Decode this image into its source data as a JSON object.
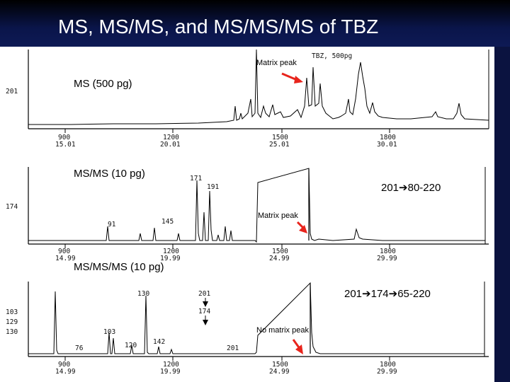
{
  "title": "MS, MS/MS, and MS/MS/MS of TBZ",
  "panel1": {
    "label": "MS (500 pg)",
    "header": "TBZ, 500pg",
    "ylabel": "201",
    "matrix": "Matrix peak",
    "ticks_scan": [
      "900",
      "1200",
      "1500",
      "1800"
    ],
    "ticks_time": [
      "15.01",
      "20.01",
      "25.01",
      "30.01"
    ]
  },
  "panel2": {
    "label": "MS/MS (10 pg)",
    "transition": "201➔80-220",
    "ylabel": "174",
    "peaks": [
      "171",
      "191",
      "91",
      "145"
    ],
    "matrix": "Matrix peak",
    "ticks_scan": [
      "900",
      "1200",
      "1500",
      "1800"
    ],
    "ticks_time": [
      "14.99",
      "19.99",
      "24.99",
      "29.99"
    ]
  },
  "panel3": {
    "label": "MS/MS/MS (10 pg)",
    "transition": "201➔174➔65-220",
    "ylabels": [
      "103",
      "129",
      "130"
    ],
    "peaks": [
      "130",
      "103",
      "76",
      "120",
      "142",
      "201"
    ],
    "path": [
      "201",
      "174"
    ],
    "matrix": "No matrix peak",
    "ticks_scan": [
      "900",
      "1200",
      "1500",
      "1800"
    ],
    "ticks_time": [
      "14.99",
      "19.99",
      "24.99",
      "29.99"
    ]
  }
}
